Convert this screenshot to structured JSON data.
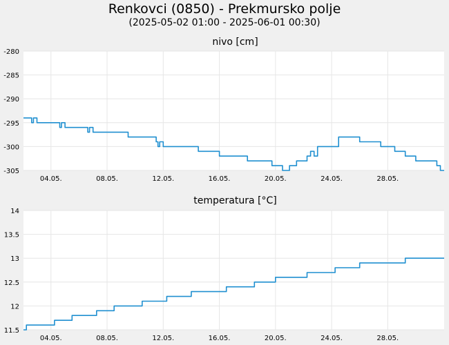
{
  "page": {
    "title": "Renkovci (0850) - Prekmursko polje",
    "subtitle": "(2025-05-02 01:00 - 2025-06-01 00:30)"
  },
  "colors": {
    "background": "#f0f0f0",
    "plot_background": "#ffffff",
    "grid": "#e6e6e6",
    "series": "#1f8fd0"
  },
  "chart_data": [
    {
      "type": "line",
      "title": "nivo [cm]",
      "xlabel": "",
      "ylabel": "",
      "xlim": [
        "2025-05-02 01:00",
        "2025-06-01 00:30"
      ],
      "ylim": [
        -305,
        -280
      ],
      "yticks": [
        -280,
        -285,
        -290,
        -295,
        -300,
        -305
      ],
      "xticks": [
        "04.05.",
        "08.05.",
        "12.05.",
        "16.05.",
        "20.05.",
        "24.05.",
        "28.05."
      ],
      "grid": true,
      "legend": "none",
      "series": [
        {
          "x": [
            "2025-05-02 01:00",
            "2025-05-02 12:00",
            "2025-05-02 15:00",
            "2025-05-02 18:00",
            "2025-05-03 00:00",
            "2025-05-04 12:00",
            "2025-05-04 15:00",
            "2025-05-04 18:00",
            "2025-05-05 00:00",
            "2025-05-06 12:00",
            "2025-05-06 15:00",
            "2025-05-06 18:00",
            "2025-05-07 00:00",
            "2025-05-09 00:00",
            "2025-05-09 12:00",
            "2025-05-10 12:00",
            "2025-05-11 12:00",
            "2025-05-11 15:00",
            "2025-05-11 18:00",
            "2025-05-12 00:00",
            "2025-05-13 00:00",
            "2025-05-14 12:00",
            "2025-05-15 12:00",
            "2025-05-16 00:00",
            "2025-05-17 12:00",
            "2025-05-18 00:00",
            "2025-05-19 12:00",
            "2025-05-19 18:00",
            "2025-05-20 06:00",
            "2025-05-20 12:00",
            "2025-05-20 18:00",
            "2025-05-21 00:00",
            "2025-05-21 12:00",
            "2025-05-21 18:00",
            "2025-05-22 06:00",
            "2025-05-22 12:00",
            "2025-05-22 18:00",
            "2025-05-23 00:00",
            "2025-05-24 12:00",
            "2025-05-25 18:00",
            "2025-05-26 00:00",
            "2025-05-27 00:00",
            "2025-05-27 12:00",
            "2025-05-28 12:00",
            "2025-05-29 06:00",
            "2025-05-30 00:00",
            "2025-05-31 00:00",
            "2025-05-31 12:00",
            "2025-05-31 18:00",
            "2025-06-01 00:30"
          ],
          "values": [
            -294,
            -294,
            -295,
            -294,
            -295,
            -295,
            -296,
            -295,
            -296,
            -296,
            -297,
            -296,
            -297,
            -297,
            -298,
            -298,
            -299,
            -300,
            -299,
            -300,
            -300,
            -301,
            -301,
            -302,
            -302,
            -303,
            -303,
            -304,
            -304,
            -305,
            -305,
            -304,
            -303,
            -303,
            -302,
            -301,
            -302,
            -300,
            -298,
            -298,
            -299,
            -299,
            -300,
            -301,
            -302,
            -303,
            -303,
            -304,
            -305,
            -305
          ]
        }
      ]
    },
    {
      "type": "line",
      "title": "temperatura [°C]",
      "xlabel": "",
      "ylabel": "",
      "xlim": [
        "2025-05-02 01:00",
        "2025-06-01 00:30"
      ],
      "ylim": [
        11.5,
        14
      ],
      "yticks": [
        "14",
        "13.5",
        "13",
        "12.5",
        "12",
        "11.5"
      ],
      "xticks": [
        "04.05.",
        "08.05.",
        "12.05.",
        "16.05.",
        "20.05.",
        "24.05.",
        "28.05."
      ],
      "grid": true,
      "legend": "none",
      "series": [
        {
          "x": [
            "2025-05-02 01:00",
            "2025-05-02 06:00",
            "2025-05-04 06:00",
            "2025-05-05 12:00",
            "2025-05-07 06:00",
            "2025-05-08 12:00",
            "2025-05-10 12:00",
            "2025-05-12 06:00",
            "2025-05-14 00:00",
            "2025-05-16 12:00",
            "2025-05-18 12:00",
            "2025-05-20 00:00",
            "2025-05-22 06:00",
            "2025-05-24 06:00",
            "2025-05-26 00:00",
            "2025-05-29 06:00",
            "2025-06-01 00:30"
          ],
          "values": [
            11.5,
            11.6,
            11.7,
            11.8,
            11.9,
            12.0,
            12.1,
            12.2,
            12.3,
            12.4,
            12.5,
            12.6,
            12.7,
            12.8,
            12.9,
            13.0,
            13.0
          ]
        }
      ]
    }
  ]
}
